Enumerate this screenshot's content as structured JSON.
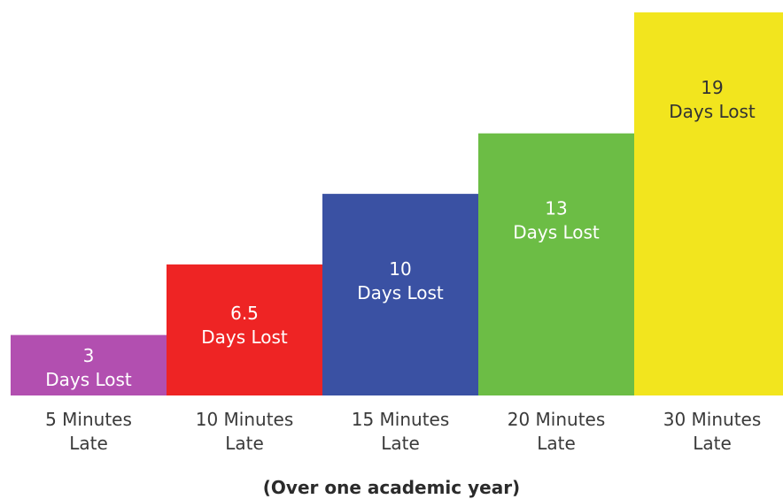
{
  "chart_data": {
    "type": "bar",
    "categories": [
      [
        "5 Minutes",
        "Late"
      ],
      [
        "10 Minutes",
        "Late"
      ],
      [
        "15 Minutes",
        "Late"
      ],
      [
        "20 Minutes",
        "Late"
      ],
      [
        "30 Minutes",
        "Late"
      ]
    ],
    "values": [
      3,
      6.5,
      10,
      13,
      19
    ],
    "value_labels": [
      "3",
      "6.5",
      "10",
      "13",
      "19"
    ],
    "unit_label": "Days Lost",
    "colors": [
      "#b24fb0",
      "#ee2424",
      "#3a51a3",
      "#6cbd45",
      "#f2e51e"
    ],
    "label_colors": [
      "#ffffff",
      "#ffffff",
      "#ffffff",
      "#ffffff",
      "#333333"
    ],
    "footnote": "(Over one academic year)",
    "ylim": [
      0,
      19
    ],
    "grid": false,
    "legend": "none"
  }
}
